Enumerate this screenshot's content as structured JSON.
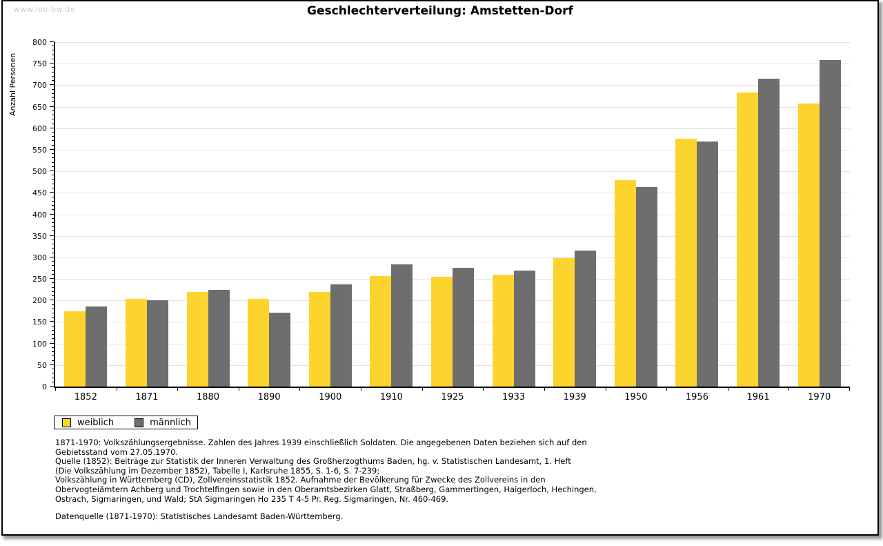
{
  "watermark": "www.leo-bw.de",
  "title": "Geschlechterverteilung: Amstetten-Dorf",
  "chart_data": {
    "type": "bar",
    "title": "Geschlechterverteilung: Amstetten-Dorf",
    "xlabel": "",
    "ylabel": "Anzahl Personen",
    "ylim": [
      0,
      800
    ],
    "ytick_step": 50,
    "minor_tick_step": 10,
    "grid": true,
    "legend_position": "bottom-left",
    "categories": [
      "1852",
      "1871",
      "1880",
      "1890",
      "1900",
      "1910",
      "1925",
      "1933",
      "1939",
      "1950",
      "1956",
      "1961",
      "1970"
    ],
    "series": [
      {
        "name": "weiblich",
        "color": "#FDD32D",
        "values": [
          175,
          204,
          220,
          203,
          219,
          257,
          255,
          260,
          298,
          480,
          575,
          683,
          657
        ]
      },
      {
        "name": "männlich",
        "color": "#6E6E6E",
        "values": [
          186,
          200,
          225,
          172,
          238,
          283,
          275,
          270,
          316,
          463,
          569,
          715,
          758
        ]
      }
    ]
  },
  "legend": {
    "items": [
      {
        "label": "weiblich",
        "color": "#FDD32D"
      },
      {
        "label": "männlich",
        "color": "#6E6E6E"
      }
    ]
  },
  "footnotes": {
    "lines": [
      "1871-1970: Volkszählungsergebnisse. Zahlen des Jahres 1939 einschließlich Soldaten. Die angegebenen Daten beziehen sich auf den",
      "Gebietsstand vom 27.05.1970.",
      "Quelle (1852): Beiträge zur Statistik der Inneren Verwaltung des Großherzogthums Baden, hg. v. Statistischen Landesamt, 1. Heft",
      "(Die Volkszählung im Dezember 1852), Tabelle I, Karlsruhe 1855, S. 1-6, S. 7-239;",
      "Volkszählung in Württemberg (CD), Zollvereinsstatistik 1852. Aufnahme der Bevölkerung für Zwecke des Zollvereins in den",
      "Obervogteiämtern Achberg und Trochtelfingen sowie in den Oberamtsbezirken Glatt, Straßberg, Gammertingen, Haigerloch, Hechingen,",
      "Ostrach, Sigmaringen, und Wald; StA Sigmaringen Ho 235 T 4-5 Pr. Reg. Sigmaringen, Nr. 460-469."
    ],
    "datenquelle": "Datenquelle (1871-1970): Statistisches Landesamt Baden-Württemberg."
  }
}
